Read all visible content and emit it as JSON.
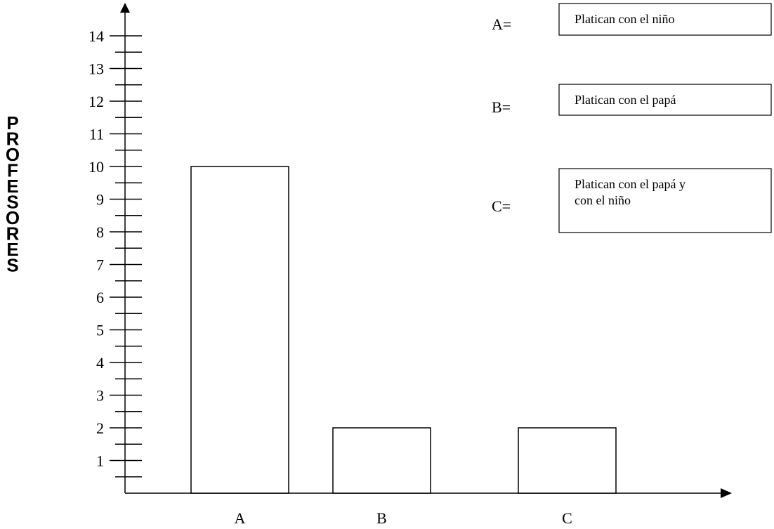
{
  "chart_data": {
    "type": "bar",
    "title": "",
    "xlabel": "",
    "ylabel": "PROFESORES",
    "categories": [
      "A",
      "B",
      "C"
    ],
    "values": [
      10,
      2,
      2
    ],
    "ylim": [
      0,
      14
    ],
    "yticks": [
      "1",
      "2",
      "3",
      "4",
      "5",
      "6",
      "7",
      "8",
      "9",
      "10",
      "11",
      "12",
      "13",
      "14"
    ],
    "minor_ticks_per_unit": 2,
    "grid": false,
    "bar_fill": "#ffffff",
    "bar_stroke": "#000000",
    "legend_position": "top-right",
    "legend": [
      {
        "key": "A=",
        "text": [
          "Platican con el niño"
        ]
      },
      {
        "key": "B=",
        "text": [
          "Platican con el papá"
        ]
      },
      {
        "key": "C=",
        "text": [
          "Platican con el papá y",
          "con el niño"
        ]
      }
    ]
  }
}
